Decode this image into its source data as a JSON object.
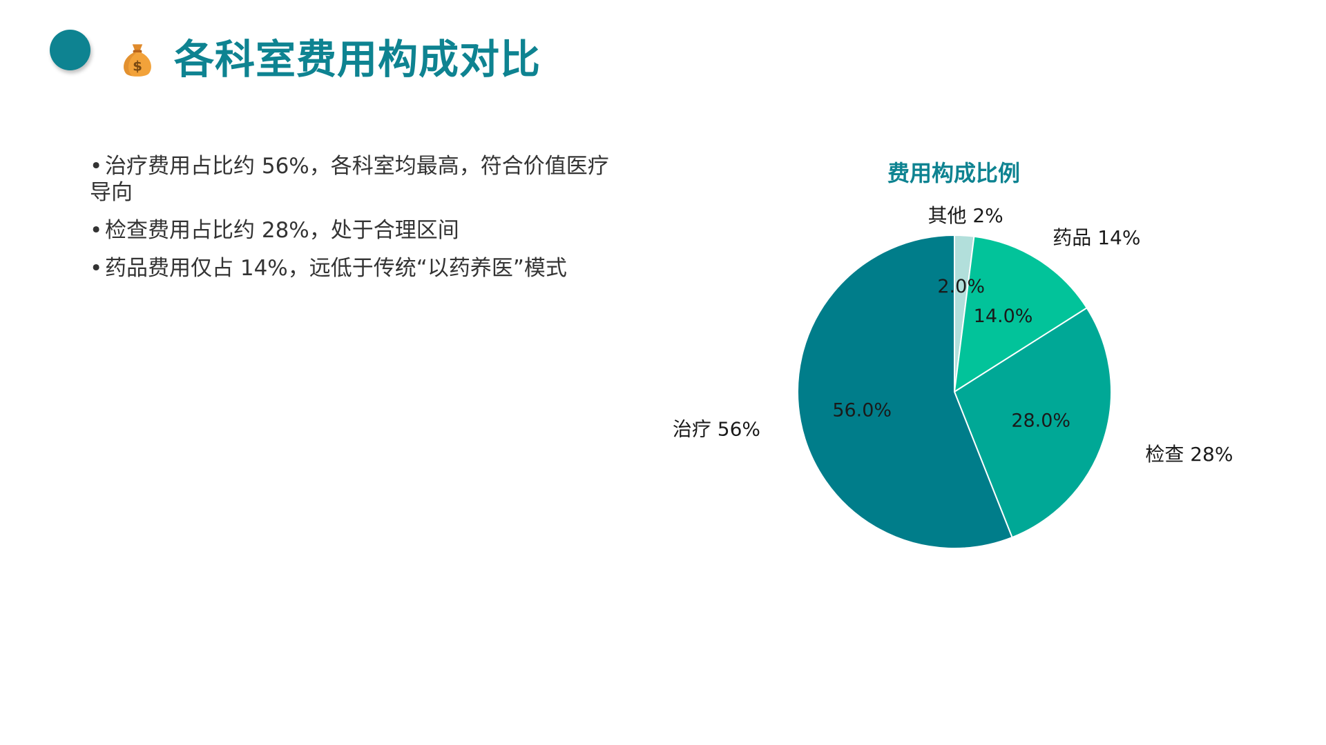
{
  "page": {
    "title": "各科室费用构成对比",
    "icon": "money-bag-icon"
  },
  "colors": {
    "accent": "#0e8391",
    "title": "#0e8391",
    "slice_treatment": "#007d8a",
    "slice_exam": "#00a896",
    "slice_drug": "#02c39a",
    "slice_other": "#b2dfdb"
  },
  "bullets": [
    "治疗费用占比约 56%，各科室均最高，符合价值医疗导向",
    "检查费用占比约 28%，处于合理区间",
    "药品费用仅占 14%，远低于传统“以药养医”模式"
  ],
  "chart_data": {
    "type": "pie",
    "title": "费用构成比例",
    "slices": [
      {
        "label": "其他 2%",
        "value": 2.0,
        "pct_label": "2.0%",
        "color": "#b2dfdb"
      },
      {
        "label": "药品 14%",
        "value": 14.0,
        "pct_label": "14.0%",
        "color": "#02c39a"
      },
      {
        "label": "检查 28%",
        "value": 28.0,
        "pct_label": "28.0%",
        "color": "#00a896"
      },
      {
        "label": "治疗 56%",
        "value": 56.0,
        "pct_label": "56.0%",
        "color": "#007d8a"
      }
    ],
    "start": "12 o'clock",
    "direction": "clockwise",
    "legend": "none"
  }
}
